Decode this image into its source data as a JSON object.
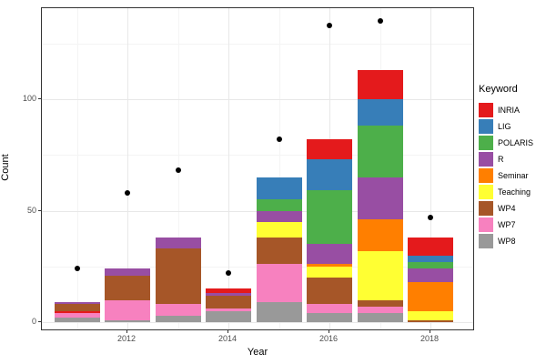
{
  "chart_data": {
    "type": "bar",
    "stacked": true,
    "title": "",
    "xlabel": "Year",
    "ylabel": "Count",
    "legend_title": "Keyword",
    "legend_position": "right",
    "grid": "on",
    "xlim": [
      2010.3,
      2018.7
    ],
    "ylim": [
      0,
      140
    ],
    "x_major_ticks": [
      2012,
      2014,
      2016,
      2018
    ],
    "x_tick_labels": [
      "2012",
      "2014",
      "2016",
      "2018"
    ],
    "x_minor_gridlines": [
      2011,
      2013,
      2015,
      2017
    ],
    "y_major_ticks": [
      0,
      50,
      100
    ],
    "y_tick_labels": [
      "0",
      "50",
      "100"
    ],
    "y_minor_gridlines": [
      25,
      75,
      125
    ],
    "keywords": [
      {
        "label": "INRIA",
        "color": "#e41a1c"
      },
      {
        "label": "LIG",
        "color": "#377eb8"
      },
      {
        "label": "POLARIS",
        "color": "#4daf4a"
      },
      {
        "label": "R",
        "color": "#984ea3"
      },
      {
        "label": "Seminar",
        "color": "#ff7f00"
      },
      {
        "label": "Teaching",
        "color": "#ffff33"
      },
      {
        "label": "WP4",
        "color": "#a65628"
      },
      {
        "label": "WP7",
        "color": "#f781bf"
      },
      {
        "label": "WP8",
        "color": "#999999"
      }
    ],
    "bars": [
      {
        "year": 2011,
        "total": 9,
        "segments_bottom_to_top": [
          {
            "keyword": "WP8",
            "value": 2
          },
          {
            "keyword": "WP7",
            "value": 2
          },
          {
            "keyword": "INRIA",
            "value": 1
          },
          {
            "keyword": "WP4",
            "value": 3
          },
          {
            "keyword": "R",
            "value": 1
          }
        ]
      },
      {
        "year": 2012,
        "total": 24,
        "segments_bottom_to_top": [
          {
            "keyword": "WP8",
            "value": 1
          },
          {
            "keyword": "WP7",
            "value": 9
          },
          {
            "keyword": "WP4",
            "value": 11
          },
          {
            "keyword": "R",
            "value": 3
          }
        ]
      },
      {
        "year": 2013,
        "total": 38,
        "segments_bottom_to_top": [
          {
            "keyword": "WP8",
            "value": 3
          },
          {
            "keyword": "WP7",
            "value": 5
          },
          {
            "keyword": "WP4",
            "value": 25
          },
          {
            "keyword": "R",
            "value": 5
          }
        ]
      },
      {
        "year": 2014,
        "total": 15,
        "segments_bottom_to_top": [
          {
            "keyword": "WP8",
            "value": 5
          },
          {
            "keyword": "WP7",
            "value": 1
          },
          {
            "keyword": "WP4",
            "value": 6
          },
          {
            "keyword": "R",
            "value": 1
          },
          {
            "keyword": "INRIA",
            "value": 2
          }
        ]
      },
      {
        "year": 2015,
        "total": 65,
        "segments_bottom_to_top": [
          {
            "keyword": "WP8",
            "value": 9
          },
          {
            "keyword": "WP7",
            "value": 17
          },
          {
            "keyword": "WP4",
            "value": 12
          },
          {
            "keyword": "Teaching",
            "value": 7
          },
          {
            "keyword": "R",
            "value": 5
          },
          {
            "keyword": "POLARIS",
            "value": 5
          },
          {
            "keyword": "LIG",
            "value": 10
          }
        ]
      },
      {
        "year": 2016,
        "total": 82,
        "segments_bottom_to_top": [
          {
            "keyword": "WP8",
            "value": 4
          },
          {
            "keyword": "WP7",
            "value": 4
          },
          {
            "keyword": "WP4",
            "value": 12
          },
          {
            "keyword": "Teaching",
            "value": 5
          },
          {
            "keyword": "Seminar",
            "value": 1
          },
          {
            "keyword": "R",
            "value": 9
          },
          {
            "keyword": "POLARIS",
            "value": 24
          },
          {
            "keyword": "LIG",
            "value": 14
          },
          {
            "keyword": "INRIA",
            "value": 9
          }
        ]
      },
      {
        "year": 2017,
        "total": 113,
        "segments_bottom_to_top": [
          {
            "keyword": "WP8",
            "value": 4
          },
          {
            "keyword": "WP7",
            "value": 3
          },
          {
            "keyword": "WP4",
            "value": 3
          },
          {
            "keyword": "Teaching",
            "value": 22
          },
          {
            "keyword": "Seminar",
            "value": 14
          },
          {
            "keyword": "R",
            "value": 19
          },
          {
            "keyword": "POLARIS",
            "value": 23
          },
          {
            "keyword": "LIG",
            "value": 12
          },
          {
            "keyword": "INRIA",
            "value": 13
          }
        ]
      },
      {
        "year": 2018,
        "total": 38,
        "segments_bottom_to_top": [
          {
            "keyword": "WP4",
            "value": 1
          },
          {
            "keyword": "Teaching",
            "value": 4
          },
          {
            "keyword": "Seminar",
            "value": 13
          },
          {
            "keyword": "R",
            "value": 6
          },
          {
            "keyword": "POLARIS",
            "value": 3
          },
          {
            "keyword": "LIG",
            "value": 3
          },
          {
            "keyword": "INRIA",
            "value": 8
          }
        ]
      }
    ],
    "points": [
      {
        "year": 2011,
        "value": 24
      },
      {
        "year": 2012,
        "value": 58
      },
      {
        "year": 2013,
        "value": 68
      },
      {
        "year": 2014,
        "value": 22
      },
      {
        "year": 2015,
        "value": 82
      },
      {
        "year": 2016,
        "value": 133
      },
      {
        "year": 2017,
        "value": 135
      },
      {
        "year": 2018,
        "value": 47
      }
    ]
  }
}
